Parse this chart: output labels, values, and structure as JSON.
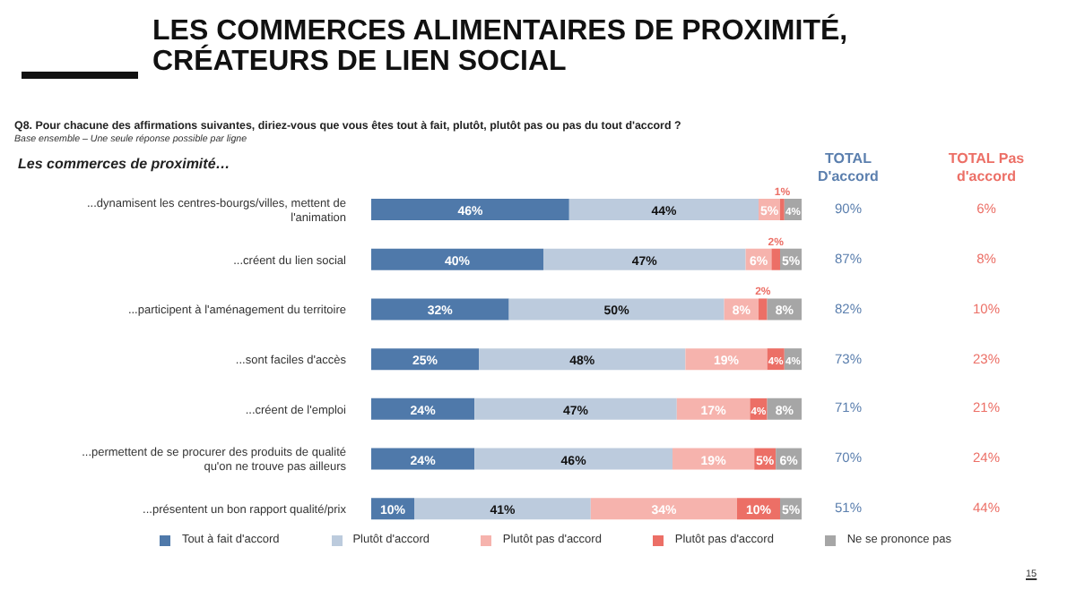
{
  "chart_data": {
    "type": "bar",
    "orientation": "horizontal",
    "stacked": true,
    "title": "LES COMMERCES ALIMENTAIRES DE PROXIMITÉ, CRÉATEURS DE LIEN SOCIAL",
    "subtitle": "Q8. Pour chacune des affirmations suivantes, diriez-vous que vous êtes tout à fait, plutôt, plutôt pas ou pas du tout d'accord ?",
    "categories": [
      "...dynamisent les centres-bourgs/villes, mettent de l'animation",
      "...créent du lien social",
      "...participent à l'aménagement du territoire",
      "...sont faciles d'accès",
      "...créent de l'emploi",
      "...permettent de se procurer des produits de qualité qu'on ne trouve pas ailleurs",
      "...présentent un bon rapport qualité/prix"
    ],
    "series": [
      {
        "name": "Tout à fait d'accord",
        "color": "#4f79aa",
        "values": [
          46,
          40,
          32,
          25,
          24,
          24,
          10
        ],
        "value_labels": [
          "46%",
          "40%",
          "32%",
          "25%",
          "24%",
          "24%",
          "10%"
        ]
      },
      {
        "name": "Plutôt d'accord",
        "color": "#bccbdd",
        "values": [
          44,
          47,
          50,
          48,
          47,
          46,
          41
        ],
        "value_labels": [
          "44%",
          "47%",
          "50%",
          "48%",
          "47%",
          "46%",
          "41%"
        ]
      },
      {
        "name": "Plutôt pas d'accord",
        "color": "#f6b3ad",
        "values": [
          5,
          6,
          8,
          19,
          17,
          19,
          34
        ],
        "value_labels": [
          "5%",
          "6%",
          "8%",
          "19%",
          "17%",
          "19%",
          "34%"
        ]
      },
      {
        "name": "Plutôt pas d'accord",
        "color": "#ec6f66",
        "values": [
          1,
          2,
          2,
          4,
          4,
          5,
          10
        ],
        "value_labels": [
          "1%",
          "2%",
          "2%",
          "4%",
          "4%",
          "5%",
          "10%"
        ]
      },
      {
        "name": "Ne se prononce pas",
        "color": "#a6a6a6",
        "values": [
          4,
          5,
          8,
          4,
          8,
          6,
          5
        ],
        "value_labels": [
          "4%",
          "5%",
          "8%",
          "4%",
          "8%",
          "6%",
          "5%"
        ]
      }
    ],
    "legend": "bottom",
    "annotations": [
      "Base ensemble – Une seule réponse possible par ligne",
      "Les commerces de proximité…",
      "TOTAL D'accord",
      "TOTAL Pas d'accord",
      "90%",
      "87%",
      "82%",
      "73%",
      "71%",
      "70%",
      "51%",
      "6%",
      "8%",
      "10%",
      "23%",
      "21%",
      "24%",
      "44%",
      "15"
    ]
  }
}
